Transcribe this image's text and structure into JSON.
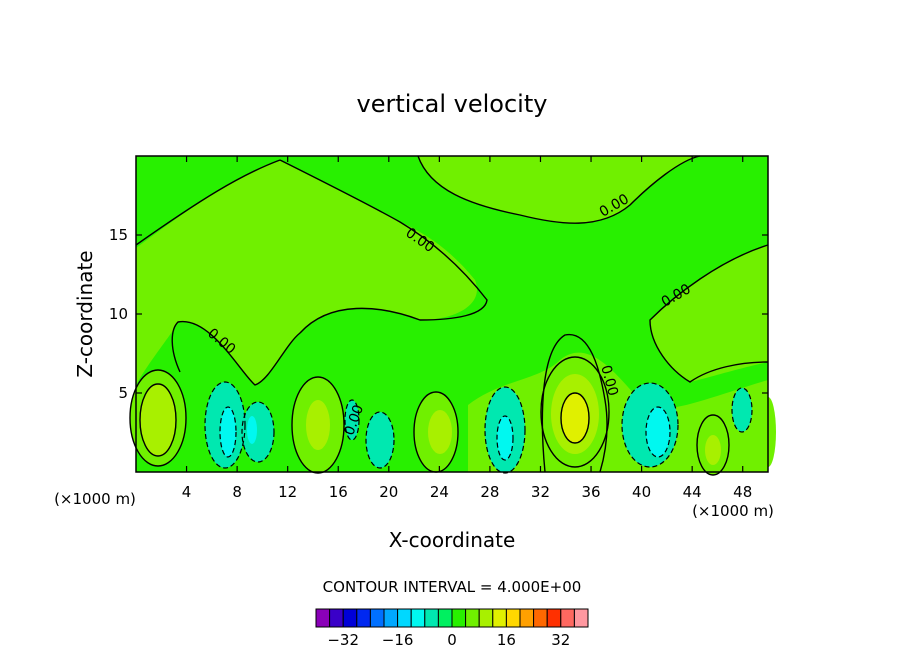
{
  "chart_data": {
    "type": "contour",
    "title": "vertical velocity",
    "xlabel": "X-coordinate",
    "ylabel": "Z-coordinate",
    "x_unit_left": "(×1000 m)",
    "x_unit_right": "(×1000 m)",
    "xlim": [
      0,
      50
    ],
    "ylim": [
      0,
      20
    ],
    "x_ticks": [
      4,
      8,
      12,
      16,
      20,
      24,
      28,
      32,
      36,
      40,
      44,
      48
    ],
    "y_ticks": [
      5,
      10,
      15
    ],
    "contour_labels": [
      {
        "text": "0.00",
        "x": 22.5,
        "y": 14.7,
        "angle": 35
      },
      {
        "text": "0.00",
        "x": 37.8,
        "y": 16.9,
        "angle": -30
      },
      {
        "text": "0.00",
        "x": 42.7,
        "y": 11.2,
        "angle": -30
      },
      {
        "text": "0.00",
        "x": 6.8,
        "y": 8.3,
        "angle": 40
      },
      {
        "text": "0.00",
        "x": 37.5,
        "y": 5.8,
        "angle": 75
      },
      {
        "text": "0.00",
        "x": 17.2,
        "y": 3.3,
        "angle": -70
      }
    ],
    "contour_interval_text": "CONTOUR INTERVAL = 4.000E+00",
    "colorbar": {
      "levels": [
        -36,
        -32,
        -28,
        -24,
        -20,
        -16,
        -12,
        -8,
        -4,
        0,
        4,
        8,
        12,
        16,
        20,
        24,
        28,
        32,
        36
      ],
      "tick_labels": [
        "-32",
        "-16",
        "0",
        "16",
        "32"
      ],
      "tick_values": [
        -32,
        -16,
        0,
        16,
        32
      ],
      "colors": [
        "#8a00b8",
        "#3a00c8",
        "#0000d8",
        "#0028f0",
        "#0070ff",
        "#00a8ff",
        "#00d8ff",
        "#00f8f0",
        "#00e8b0",
        "#00f060",
        "#28f000",
        "#70f000",
        "#a8f000",
        "#e0f000",
        "#ffd800",
        "#ffa000",
        "#ff6800",
        "#ff3000",
        "#ff6860",
        "#ff98a0"
      ]
    }
  }
}
